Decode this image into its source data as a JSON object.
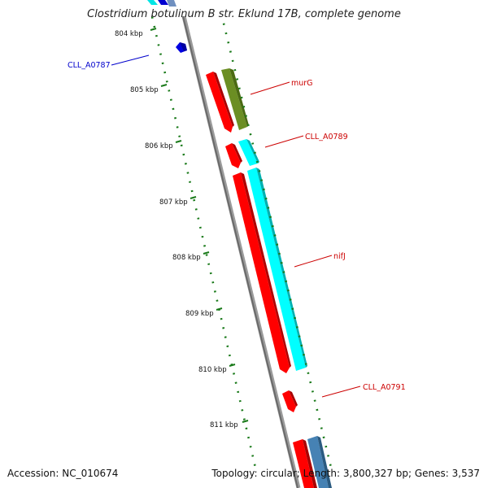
{
  "title": "Clostridium botulinum B str. Eklund 17B, complete genome",
  "footer": {
    "accession": "Accession: NC_010674",
    "summary": "Topology: circular; Length: 3,800,327 bp; Genes: 3,537"
  },
  "ticks": [
    "804 kbp",
    "805 kbp",
    "806 kbp",
    "807 kbp",
    "808 kbp",
    "809 kbp",
    "810 kbp",
    "811 kbp"
  ],
  "genes": [
    {
      "name": "CLL_A0787",
      "color": "#0000c8",
      "strand": "reverse"
    },
    {
      "name": "murG",
      "color": "#cc0000",
      "strand": "forward"
    },
    {
      "name": "CLL_A0789",
      "color": "#cc0000",
      "strand": "forward"
    },
    {
      "name": "nifJ",
      "color": "#cc0000",
      "strand": "forward"
    },
    {
      "name": "CLL_A0791",
      "color": "#cc0000",
      "strand": "forward"
    }
  ],
  "colors": {
    "backbone": "#808080",
    "tick": "#1a7a1a",
    "red": "#ff0000",
    "cyan": "#00ffff",
    "olive": "#6b8e23",
    "blue": "#0000ff",
    "steelblue": "#4682b4"
  }
}
